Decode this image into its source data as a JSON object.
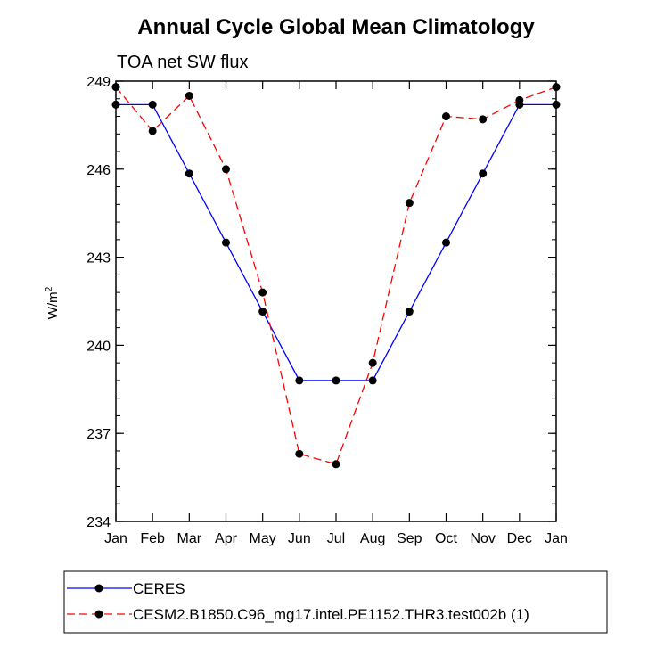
{
  "chart_data": {
    "type": "line",
    "title": "Annual Cycle Global Mean Climatology",
    "subtitle": "TOA net SW flux",
    "ylabel": "W/m",
    "ylabel_sup": "2",
    "categories": [
      "Jan",
      "Feb",
      "Mar",
      "Apr",
      "May",
      "Jun",
      "Jul",
      "Aug",
      "Sep",
      "Oct",
      "Nov",
      "Dec",
      "Jan"
    ],
    "ylim": [
      234,
      249
    ],
    "yticks": [
      234,
      237,
      240,
      243,
      246,
      249
    ],
    "series": [
      {
        "name": "CERES",
        "color": "#0000ff",
        "dash": "solid",
        "values": [
          248.2,
          248.2,
          245.85,
          243.5,
          241.15,
          238.8,
          238.8,
          238.8,
          241.15,
          243.5,
          245.85,
          248.2,
          248.2
        ]
      },
      {
        "name": "CESM2.B1850.C96_mg17.intel.PE1152.THR3.test002b (1)",
        "color": "#ff0000",
        "dash": "dashed",
        "values": [
          248.8,
          247.3,
          248.5,
          246.0,
          241.8,
          236.3,
          235.95,
          239.4,
          244.85,
          247.8,
          247.7,
          248.35,
          248.8
        ]
      }
    ]
  }
}
